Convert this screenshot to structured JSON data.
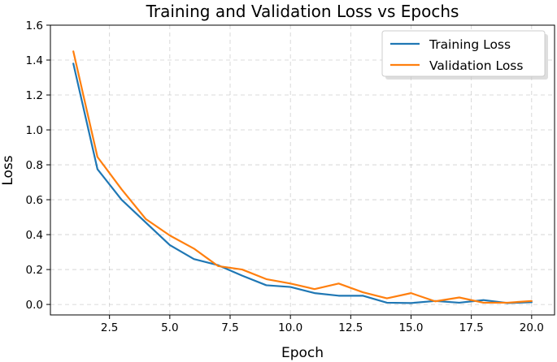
{
  "chart_data": {
    "type": "line",
    "title": "Training and Validation Loss vs Epochs",
    "xlabel": "Epoch",
    "ylabel": "Loss",
    "xlim": [
      0.05,
      20.95
    ],
    "ylim": [
      -0.06,
      1.6
    ],
    "xticks": [
      2.5,
      5.0,
      7.5,
      10.0,
      12.5,
      15.0,
      17.5,
      20.0
    ],
    "xtick_labels": [
      "2.5",
      "5.0",
      "7.5",
      "10.0",
      "12.5",
      "15.0",
      "17.5",
      "20.0"
    ],
    "yticks": [
      0.0,
      0.2,
      0.4,
      0.6,
      0.8,
      1.0,
      1.2,
      1.4,
      1.6
    ],
    "ytick_labels": [
      "0.0",
      "0.2",
      "0.4",
      "0.6",
      "0.8",
      "1.0",
      "1.2",
      "1.4",
      "1.6"
    ],
    "grid": true,
    "legend_position": "top-right",
    "x": [
      1,
      2,
      3,
      4,
      5,
      6,
      7,
      8,
      9,
      10,
      11,
      12,
      13,
      14,
      15,
      16,
      17,
      18,
      19,
      20
    ],
    "series": [
      {
        "name": "Training Loss",
        "color": "#1f77b4",
        "values": [
          1.38,
          0.775,
          0.6,
          0.47,
          0.34,
          0.26,
          0.225,
          0.165,
          0.11,
          0.1,
          0.065,
          0.05,
          0.05,
          0.01,
          0.008,
          0.02,
          0.01,
          0.025,
          0.008,
          0.013
        ]
      },
      {
        "name": "Validation Loss",
        "color": "#ff7f0e",
        "values": [
          1.45,
          0.845,
          0.66,
          0.49,
          0.395,
          0.32,
          0.22,
          0.2,
          0.145,
          0.12,
          0.088,
          0.12,
          0.07,
          0.035,
          0.065,
          0.018,
          0.04,
          0.01,
          0.01,
          0.02
        ]
      }
    ]
  }
}
